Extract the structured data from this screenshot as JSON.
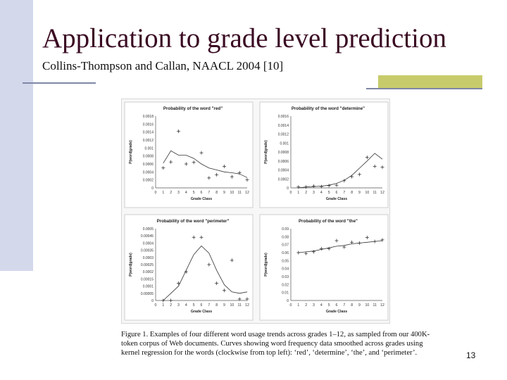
{
  "slide": {
    "title": "Application to grade level prediction",
    "subtitle": "Collins-Thompson and Callan, NAACL 2004 [10]",
    "caption": "Figure 1.  Examples of four different word usage trends across grades 1–12, as sampled from our 400K-token corpus of Web documents.  Curves showing word frequency data smoothed across grades using kernel regression for the words (clockwise from top left): ‘red’, ‘determine’, ‘the’, and ‘perimeter’.",
    "page_number": "13"
  },
  "colors": {
    "title": "#3a0a22",
    "side_bar": "#d3d8eb",
    "rule": "#7f87a6",
    "accent": "#c7cb6b"
  },
  "chart_data": [
    {
      "type": "line",
      "title": "Probability of the word \"red\"",
      "xlabel": "Grade Class",
      "ylabel": "P(word|grade)",
      "xlim": [
        0,
        12
      ],
      "ylim": [
        0,
        0.0018
      ],
      "x_ticks": [
        "0",
        "1",
        "2",
        "3",
        "4",
        "5",
        "6",
        "7",
        "8",
        "9",
        "10",
        "11",
        "12"
      ],
      "y_ticks": [
        "0",
        "0.0002",
        "0.0004",
        "0.0006",
        "0.0008",
        "0.001",
        "0.0012",
        "0.0014",
        "0.0016",
        "0.0018"
      ],
      "points": [
        [
          1,
          0.0005
        ],
        [
          2,
          0.00065
        ],
        [
          3,
          0.00142
        ],
        [
          4,
          0.0006
        ],
        [
          5,
          0.00064
        ],
        [
          6,
          0.00088
        ],
        [
          7,
          0.00025
        ],
        [
          8,
          0.00033
        ],
        [
          9,
          0.00054
        ],
        [
          10,
          0.00028
        ],
        [
          11,
          0.00038
        ],
        [
          12,
          0.0002
        ]
      ],
      "curve": [
        [
          1,
          0.00062
        ],
        [
          2,
          0.00093
        ],
        [
          3,
          0.00082
        ],
        [
          4,
          0.00082
        ],
        [
          5,
          0.00074
        ],
        [
          6,
          0.0006
        ],
        [
          7,
          0.0005
        ],
        [
          8,
          0.00045
        ],
        [
          9,
          0.0004
        ],
        [
          10,
          0.00038
        ],
        [
          11,
          0.00035
        ],
        [
          12,
          0.00026
        ]
      ]
    },
    {
      "type": "line",
      "title": "Probability of the word \"determine\"",
      "xlabel": "Grade Class",
      "ylabel": "P(word|grade)",
      "xlim": [
        0,
        12
      ],
      "ylim": [
        0,
        0.0016
      ],
      "x_ticks": [
        "0",
        "1",
        "2",
        "3",
        "4",
        "5",
        "6",
        "7",
        "8",
        "9",
        "10",
        "11",
        "12"
      ],
      "y_ticks": [
        "0",
        "0.0002",
        "0.0004",
        "0.0006",
        "0.0008",
        "0.001",
        "0.0012",
        "0.0014",
        "0.0016"
      ],
      "points": [
        [
          1,
          2e-05
        ],
        [
          2,
          2e-05
        ],
        [
          3,
          4e-05
        ],
        [
          4,
          3e-05
        ],
        [
          5,
          5e-05
        ],
        [
          6,
          6e-05
        ],
        [
          7,
          0.00016
        ],
        [
          8,
          0.00025
        ],
        [
          9,
          0.0003
        ],
        [
          10,
          0.00068
        ],
        [
          11,
          0.00048
        ],
        [
          12,
          0.00046
        ]
      ],
      "curve": [
        [
          1,
          0.0
        ],
        [
          2,
          2e-05
        ],
        [
          3,
          3e-05
        ],
        [
          4,
          4e-05
        ],
        [
          5,
          6e-05
        ],
        [
          6,
          0.0001
        ],
        [
          7,
          0.00017
        ],
        [
          8,
          0.00028
        ],
        [
          9,
          0.00044
        ],
        [
          10,
          0.0006
        ],
        [
          11,
          0.00077
        ],
        [
          12,
          0.00064
        ]
      ]
    },
    {
      "type": "line",
      "title": "Probability of the word \"perimeter\"",
      "xlabel": "Grade Class",
      "ylabel": "P(word|grade)",
      "xlim": [
        0,
        12
      ],
      "ylim": [
        0,
        0.0005
      ],
      "x_ticks": [
        "0",
        "1",
        "2",
        "3",
        "4",
        "5",
        "6",
        "7",
        "8",
        "9",
        "10",
        "11",
        "12"
      ],
      "y_ticks": [
        "0",
        "0.00005",
        "0.0001",
        "0.00015",
        "0.0002",
        "0.00025",
        "0.0003",
        "0.00035",
        "0.0004",
        "0.00045",
        "0.0005"
      ],
      "points": [
        [
          1,
          0.0
        ],
        [
          2,
          0.0
        ],
        [
          3,
          0.00012
        ],
        [
          4,
          0.0002
        ],
        [
          5,
          0.00044
        ],
        [
          6,
          0.00044
        ],
        [
          7,
          0.00025
        ],
        [
          8,
          0.00012
        ],
        [
          9,
          7e-05
        ],
        [
          10,
          0.00028
        ],
        [
          11,
          1e-05
        ],
        [
          12,
          1e-05
        ]
      ],
      "curve": [
        [
          1,
          0.0
        ],
        [
          2,
          5e-05
        ],
        [
          3,
          0.0001
        ],
        [
          4,
          0.00021
        ],
        [
          5,
          0.00032
        ],
        [
          6,
          0.00038
        ],
        [
          7,
          0.00033
        ],
        [
          8,
          0.00021
        ],
        [
          9,
          0.00011
        ],
        [
          10,
          6e-05
        ],
        [
          11,
          5e-05
        ],
        [
          12,
          6e-05
        ]
      ]
    },
    {
      "type": "line",
      "title": "Probability of the word \"the\"",
      "xlabel": "Grade Class",
      "ylabel": "P(word|grade)",
      "xlim": [
        0,
        12
      ],
      "ylim": [
        0,
        0.09
      ],
      "x_ticks": [
        "0",
        "1",
        "2",
        "3",
        "4",
        "5",
        "6",
        "7",
        "8",
        "9",
        "10",
        "11",
        "12"
      ],
      "y_ticks": [
        "0",
        "0.01",
        "0.02",
        "0.03",
        "0.04",
        "0.05",
        "0.06",
        "0.07",
        "0.08",
        "0.09"
      ],
      "points": [
        [
          1,
          0.06
        ],
        [
          2,
          0.059
        ],
        [
          3,
          0.061
        ],
        [
          4,
          0.065
        ],
        [
          5,
          0.065
        ],
        [
          6,
          0.075
        ],
        [
          7,
          0.067
        ],
        [
          8,
          0.073
        ],
        [
          9,
          0.072
        ],
        [
          10,
          0.079
        ],
        [
          11,
          0.074
        ],
        [
          12,
          0.076
        ]
      ],
      "curve": [
        [
          1,
          0.06
        ],
        [
          2,
          0.061
        ],
        [
          3,
          0.062
        ],
        [
          4,
          0.064
        ],
        [
          5,
          0.066
        ],
        [
          6,
          0.068
        ],
        [
          7,
          0.069
        ],
        [
          8,
          0.071
        ],
        [
          9,
          0.072
        ],
        [
          10,
          0.073
        ],
        [
          11,
          0.074
        ],
        [
          12,
          0.075
        ]
      ]
    }
  ]
}
